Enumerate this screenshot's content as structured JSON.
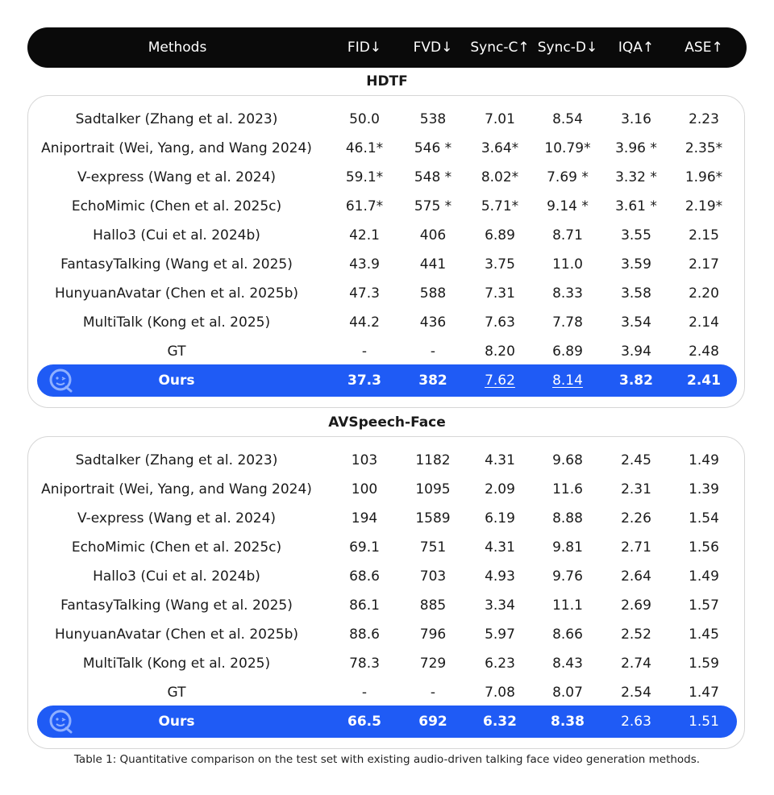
{
  "header": [
    "Methods",
    "FID↓",
    "FVD↓",
    "Sync-C↑",
    "Sync-D↓",
    "IQA↑",
    "ASE↑"
  ],
  "sections": [
    {
      "title": "HDTF",
      "rows": [
        [
          "Sadtalker (Zhang et al. 2023)",
          "50.0",
          "538",
          "7.01",
          "8.54",
          "3.16",
          "2.23"
        ],
        [
          "Aniportrait (Wei, Yang, and Wang 2024)",
          "46.1*",
          "546 *",
          "3.64*",
          "10.79*",
          "3.96 *",
          "2.35*"
        ],
        [
          "V-express (Wang et al. 2024)",
          "59.1*",
          "548 *",
          "8.02*",
          "7.69 *",
          "3.32 *",
          "1.96*"
        ],
        [
          "EchoMimic (Chen et al. 2025c)",
          "61.7*",
          "575 *",
          "5.71*",
          "9.14 *",
          "3.61 *",
          "2.19*"
        ],
        [
          "Hallo3 (Cui et al. 2024b)",
          "42.1",
          "406",
          "6.89",
          "8.71",
          "3.55",
          "2.15"
        ],
        [
          "FantasyTalking (Wang et al. 2025)",
          "43.9",
          "441",
          "3.75",
          "11.0",
          "3.59",
          "2.17"
        ],
        [
          "HunyuanAvatar (Chen et al. 2025b)",
          "47.3",
          "588",
          "7.31",
          "8.33",
          "3.58",
          "2.20"
        ],
        [
          "MultiTalk (Kong et al. 2025)",
          "44.2",
          "436",
          "7.63",
          "7.78",
          "3.54",
          "2.14"
        ],
        [
          "GT",
          "-",
          "-",
          "8.20",
          "6.89",
          "3.94",
          "2.48"
        ]
      ],
      "ours": [
        "Ours",
        "37.3",
        "382",
        "7.62",
        "8.14",
        "3.82",
        "2.41"
      ]
    },
    {
      "title": "AVSpeech-Face",
      "rows": [
        [
          "Sadtalker (Zhang et al. 2023)",
          "103",
          "1182",
          "4.31",
          "9.68",
          "2.45",
          "1.49"
        ],
        [
          "Aniportrait (Wei, Yang, and Wang 2024)",
          "100",
          "1095",
          "2.09",
          "11.6",
          "2.31",
          "1.39"
        ],
        [
          "V-express (Wang et al. 2024)",
          "194",
          "1589",
          "6.19",
          "8.88",
          "2.26",
          "1.54"
        ],
        [
          "EchoMimic (Chen et al. 2025c)",
          "69.1",
          "751",
          "4.31",
          "9.81",
          "2.71",
          "1.56"
        ],
        [
          "Hallo3 (Cui et al. 2024b)",
          "68.6",
          "703",
          "4.93",
          "9.76",
          "2.64",
          "1.49"
        ],
        [
          "FantasyTalking (Wang et al. 2025)",
          "86.1",
          "885",
          "3.34",
          "11.1",
          "2.69",
          "1.57"
        ],
        [
          "HunyuanAvatar (Chen et al. 2025b)",
          "88.6",
          "796",
          "5.97",
          "8.66",
          "2.52",
          "1.45"
        ],
        [
          "MultiTalk (Kong et al. 2025)",
          "78.3",
          "729",
          "6.23",
          "8.43",
          "2.74",
          "1.59"
        ],
        [
          "GT",
          "-",
          "-",
          "7.08",
          "8.07",
          "2.54",
          "1.47"
        ]
      ],
      "ours": [
        "Ours",
        "66.5",
        "692",
        "6.32",
        "8.38",
        "2.63",
        "1.51"
      ]
    }
  ],
  "caption": "Table 1: Quantitative comparison on the test set with existing audio-driven talking face video generation methods."
}
